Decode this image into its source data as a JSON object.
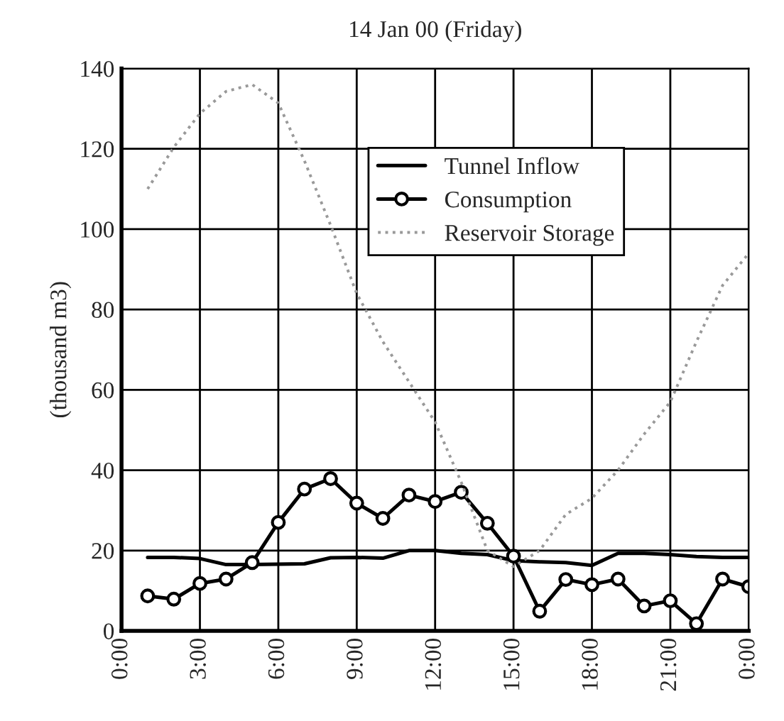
{
  "chart_data": {
    "type": "line",
    "title": "14 Jan 00 (Friday)",
    "ylabel": "(thousand m3)",
    "x": [
      1,
      2,
      3,
      4,
      5,
      6,
      7,
      8,
      9,
      10,
      11,
      12,
      13,
      14,
      15,
      16,
      17,
      18,
      19,
      20,
      21,
      22,
      23,
      24
    ],
    "series": [
      {
        "name": "Tunnel Inflow",
        "color": "#000000",
        "marker": "none",
        "line_style": "solid",
        "values": [
          18.3,
          18.3,
          18,
          16.5,
          16.5,
          16.6,
          16.7,
          18.2,
          18.3,
          18.1,
          20,
          20,
          19.3,
          19,
          17.5,
          17.2,
          17,
          16.3,
          19.3,
          19.3,
          19,
          18.5,
          18.3,
          18.3
        ]
      },
      {
        "name": "Consumption",
        "color": "#000000",
        "marker": "circle",
        "line_style": "solid",
        "values": [
          8.7,
          7.9,
          11.8,
          12.9,
          17,
          27,
          35.3,
          37.9,
          31.8,
          28,
          33.8,
          32.2,
          34.5,
          26.8,
          18.6,
          4.9,
          12.8,
          11.5,
          12.9,
          6.2,
          7.5,
          1.8,
          12.9,
          11
        ]
      },
      {
        "name": "Reservoir Storage",
        "color": "#999999",
        "marker": "none",
        "line_style": "dotted",
        "values": [
          110,
          120.4,
          128.8,
          134.3,
          136,
          131.4,
          117,
          101,
          84,
          72,
          62,
          52,
          37,
          20,
          16,
          20,
          29,
          33,
          40,
          49,
          57,
          72,
          86,
          94
        ]
      }
    ],
    "xlim": [
      0,
      24
    ],
    "xticks": [
      {
        "value": 0,
        "label": "0:00"
      },
      {
        "value": 3,
        "label": "3:00"
      },
      {
        "value": 6,
        "label": "6:00"
      },
      {
        "value": 9,
        "label": "9:00"
      },
      {
        "value": 12,
        "label": "12:00"
      },
      {
        "value": 15,
        "label": "15:00"
      },
      {
        "value": 18,
        "label": "18:00"
      },
      {
        "value": 21,
        "label": "21:00"
      },
      {
        "value": 24,
        "label": "0:00"
      }
    ],
    "ylim": [
      0,
      140
    ],
    "yticks": [
      0,
      20,
      40,
      60,
      80,
      100,
      120,
      140
    ],
    "grid": true,
    "legend": "top right"
  }
}
